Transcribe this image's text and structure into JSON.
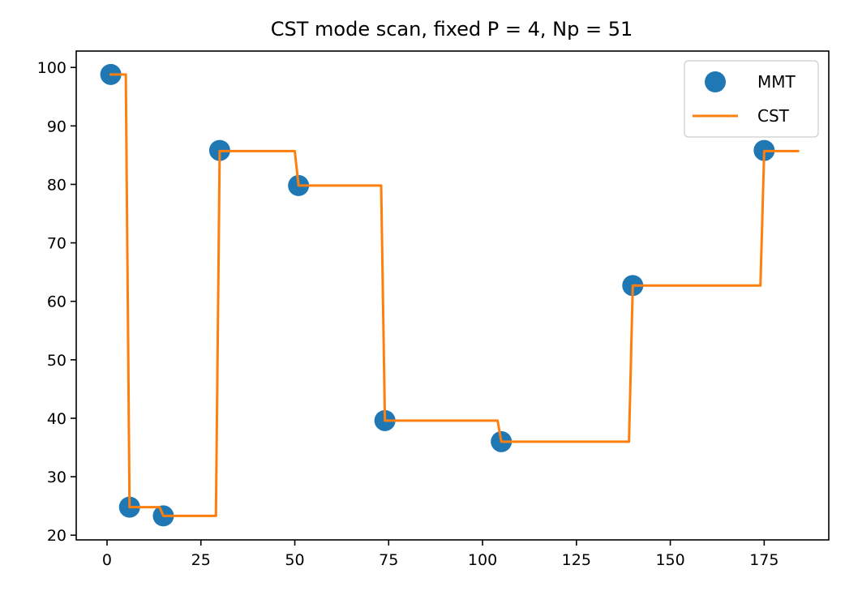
{
  "chart_data": {
    "type": "line",
    "title": "CST mode scan, fixed P = 4, Np = 51",
    "xlabel": "",
    "ylabel": "",
    "xlim": [
      -8.2,
      192.2
    ],
    "ylim": [
      19.2,
      102.8
    ],
    "xticks": [
      0,
      25,
      50,
      75,
      100,
      125,
      150,
      175
    ],
    "yticks": [
      20,
      30,
      40,
      50,
      60,
      70,
      80,
      90,
      100
    ],
    "xtick_labels": [
      "0",
      "25",
      "50",
      "75",
      "100",
      "125",
      "150",
      "175"
    ],
    "ytick_labels": [
      "20",
      "30",
      "40",
      "50",
      "60",
      "70",
      "80",
      "90",
      "100"
    ],
    "grid": false,
    "legend": {
      "position": "top-right",
      "entries": [
        "MMT",
        "CST"
      ]
    },
    "series": [
      {
        "name": "MMT",
        "kind": "scatter",
        "color": "#1f77b4",
        "x": [
          1,
          6,
          15,
          30,
          51,
          74,
          105,
          140,
          175
        ],
        "y": [
          98.8,
          24.8,
          23.3,
          85.8,
          79.8,
          39.6,
          36.0,
          62.7,
          85.8
        ]
      },
      {
        "name": "CST",
        "kind": "line",
        "color": "#ff7f0e",
        "x": [
          1,
          5,
          6,
          14,
          15,
          29,
          30,
          50,
          51,
          73,
          74,
          104,
          105,
          139,
          140,
          174,
          175,
          184
        ],
        "y": [
          98.8,
          98.8,
          24.8,
          24.8,
          23.3,
          23.3,
          85.7,
          85.7,
          79.8,
          79.8,
          39.6,
          39.6,
          36.0,
          36.0,
          62.7,
          62.7,
          85.7,
          85.7
        ]
      }
    ]
  }
}
